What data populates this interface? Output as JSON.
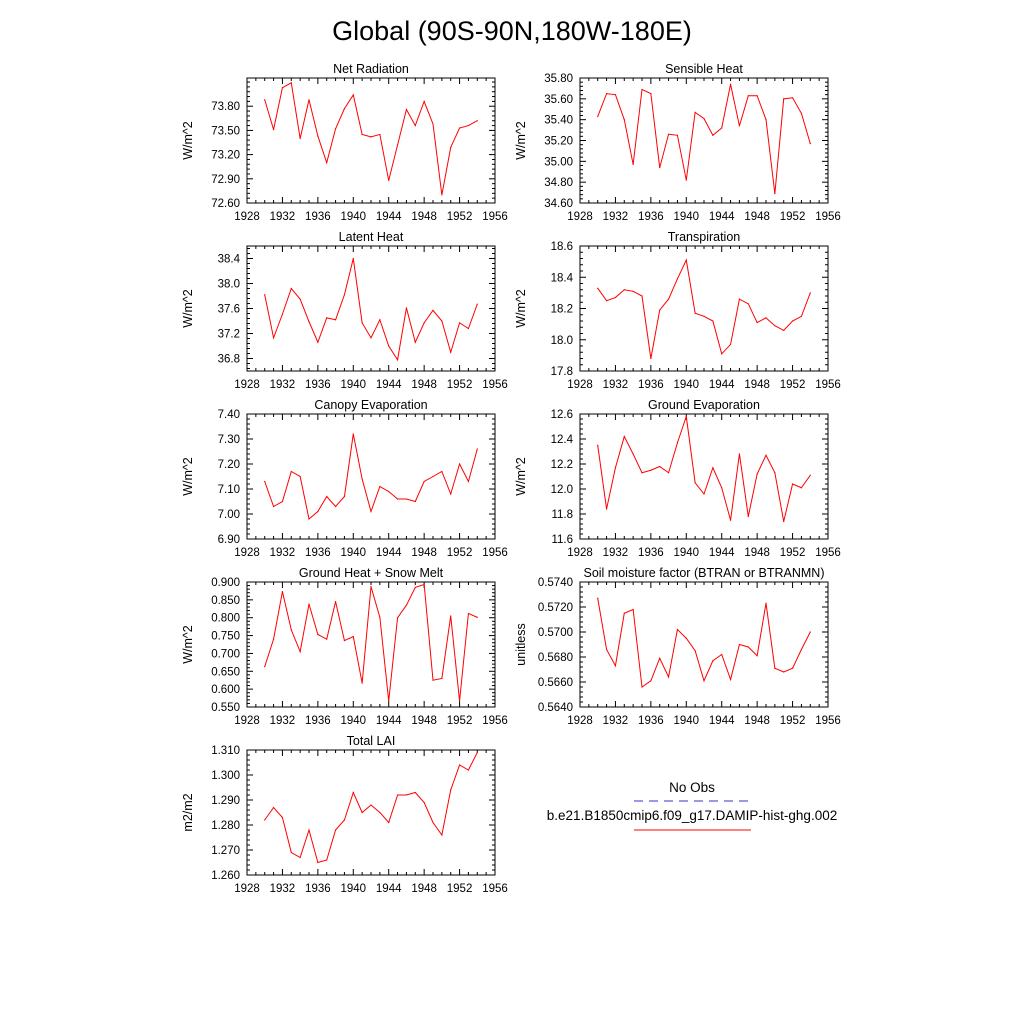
{
  "title": "Global (90S-90N,180W-180E)",
  "legend": {
    "obs_label": "No Obs",
    "model_label": "b.e21.B1850cmip6.f09_g17.DAMIP-hist-ghg.002",
    "obs_color": "#3333cc",
    "model_color": "#ff0000"
  },
  "chart_data": [
    {
      "type": "line",
      "title": "Net Radiation",
      "ylabel": "W/m^2",
      "xlim": [
        1928,
        1956
      ],
      "ylim": [
        72.6,
        74.15
      ],
      "xticks": [
        1928,
        1932,
        1936,
        1940,
        1944,
        1948,
        1952,
        1956
      ],
      "yticks": [
        "72.60",
        "72.90",
        "73.20",
        "73.50",
        "73.80"
      ],
      "x": [
        1930,
        1931,
        1932,
        1933,
        1934,
        1935,
        1936,
        1937,
        1938,
        1939,
        1940,
        1941,
        1942,
        1943,
        1944,
        1945,
        1946,
        1947,
        1948,
        1949,
        1950,
        1951,
        1952,
        1953,
        1954
      ],
      "y": [
        73.88,
        73.51,
        74.03,
        74.09,
        73.4,
        73.88,
        73.43,
        73.1,
        73.52,
        73.77,
        73.94,
        73.45,
        73.42,
        73.45,
        72.88,
        73.32,
        73.76,
        73.56,
        73.86,
        73.58,
        72.7,
        73.29,
        73.53,
        73.56,
        73.62
      ]
    },
    {
      "type": "line",
      "title": "Sensible Heat",
      "ylabel": "W/m^2",
      "xlim": [
        1928,
        1956
      ],
      "ylim": [
        34.6,
        35.8
      ],
      "xticks": [
        1928,
        1932,
        1936,
        1940,
        1944,
        1948,
        1952,
        1956
      ],
      "yticks": [
        "34.60",
        "34.80",
        "35.00",
        "35.20",
        "35.40",
        "35.60",
        "35.80"
      ],
      "x": [
        1930,
        1931,
        1932,
        1933,
        1934,
        1935,
        1936,
        1937,
        1938,
        1939,
        1940,
        1941,
        1942,
        1943,
        1944,
        1945,
        1946,
        1947,
        1948,
        1949,
        1950,
        1951,
        1952,
        1953,
        1954
      ],
      "y": [
        35.43,
        35.65,
        35.64,
        35.4,
        34.97,
        35.69,
        35.65,
        34.94,
        35.26,
        35.25,
        34.82,
        35.47,
        35.41,
        35.25,
        35.32,
        35.74,
        35.34,
        35.63,
        35.63,
        35.4,
        34.69,
        35.6,
        35.61,
        35.46,
        35.17
      ]
    },
    {
      "type": "line",
      "title": "Latent Heat",
      "ylabel": "W/m^2",
      "xlim": [
        1928,
        1956
      ],
      "ylim": [
        36.6,
        38.6
      ],
      "xticks": [
        1928,
        1932,
        1936,
        1940,
        1944,
        1948,
        1952,
        1956
      ],
      "yticks": [
        "36.8",
        "37.2",
        "37.6",
        "38.0",
        "38.4"
      ],
      "x": [
        1930,
        1931,
        1932,
        1933,
        1934,
        1935,
        1936,
        1937,
        1938,
        1939,
        1940,
        1941,
        1942,
        1943,
        1944,
        1945,
        1946,
        1947,
        1948,
        1949,
        1950,
        1951,
        1952,
        1953,
        1954
      ],
      "y": [
        37.82,
        37.13,
        37.51,
        37.92,
        37.75,
        37.39,
        37.06,
        37.45,
        37.42,
        37.82,
        38.4,
        37.37,
        37.13,
        37.42,
        37.0,
        36.78,
        37.61,
        37.06,
        37.37,
        37.57,
        37.4,
        36.9,
        37.37,
        37.28,
        37.67
      ]
    },
    {
      "type": "line",
      "title": "Transpiration",
      "ylabel": "W/m^2",
      "xlim": [
        1928,
        1956
      ],
      "ylim": [
        17.8,
        18.6
      ],
      "xticks": [
        1928,
        1932,
        1936,
        1940,
        1944,
        1948,
        1952,
        1956
      ],
      "yticks": [
        "17.8",
        "18.0",
        "18.2",
        "18.4",
        "18.6"
      ],
      "x": [
        1930,
        1931,
        1932,
        1933,
        1934,
        1935,
        1936,
        1937,
        1938,
        1939,
        1940,
        1941,
        1942,
        1943,
        1944,
        1945,
        1946,
        1947,
        1948,
        1949,
        1950,
        1951,
        1952,
        1953,
        1954
      ],
      "y": [
        18.33,
        18.25,
        18.27,
        18.32,
        18.31,
        18.28,
        17.88,
        18.19,
        18.26,
        18.39,
        18.51,
        18.17,
        18.15,
        18.12,
        17.91,
        17.97,
        18.26,
        18.23,
        18.11,
        18.14,
        18.09,
        18.06,
        18.12,
        18.15,
        18.3
      ]
    },
    {
      "type": "line",
      "title": "Canopy Evaporation",
      "ylabel": "W/m^2",
      "xlim": [
        1928,
        1956
      ],
      "ylim": [
        6.9,
        7.4
      ],
      "xticks": [
        1928,
        1932,
        1936,
        1940,
        1944,
        1948,
        1952,
        1956
      ],
      "yticks": [
        "6.90",
        "7.00",
        "7.10",
        "7.20",
        "7.30",
        "7.40"
      ],
      "x": [
        1930,
        1931,
        1932,
        1933,
        1934,
        1935,
        1936,
        1937,
        1938,
        1939,
        1940,
        1941,
        1942,
        1943,
        1944,
        1945,
        1946,
        1947,
        1948,
        1949,
        1950,
        1951,
        1952,
        1953,
        1954
      ],
      "y": [
        7.13,
        7.03,
        7.05,
        7.17,
        7.15,
        6.98,
        7.01,
        7.07,
        7.03,
        7.07,
        7.32,
        7.14,
        7.01,
        7.11,
        7.09,
        7.06,
        7.06,
        7.05,
        7.13,
        7.15,
        7.17,
        7.08,
        7.2,
        7.13,
        7.26
      ]
    },
    {
      "type": "line",
      "title": "Ground Evaporation",
      "ylabel": "W/m^2",
      "xlim": [
        1928,
        1956
      ],
      "ylim": [
        11.6,
        12.6
      ],
      "xticks": [
        1928,
        1932,
        1936,
        1940,
        1944,
        1948,
        1952,
        1956
      ],
      "yticks": [
        "11.6",
        "11.8",
        "12.0",
        "12.2",
        "12.4",
        "12.6"
      ],
      "x": [
        1930,
        1931,
        1932,
        1933,
        1934,
        1935,
        1936,
        1937,
        1938,
        1939,
        1940,
        1941,
        1942,
        1943,
        1944,
        1945,
        1946,
        1947,
        1948,
        1949,
        1950,
        1951,
        1952,
        1953,
        1954
      ],
      "y": [
        12.35,
        11.84,
        12.17,
        12.42,
        12.28,
        12.13,
        12.15,
        12.18,
        12.13,
        12.37,
        12.58,
        12.05,
        11.96,
        12.17,
        12.01,
        11.75,
        12.28,
        11.78,
        12.12,
        12.27,
        12.13,
        11.74,
        12.04,
        12.01,
        12.11
      ]
    },
    {
      "type": "line",
      "title": "Ground Heat + Snow Melt",
      "ylabel": "W/m^2",
      "xlim": [
        1928,
        1956
      ],
      "ylim": [
        0.55,
        0.9
      ],
      "xticks": [
        1928,
        1932,
        1936,
        1940,
        1944,
        1948,
        1952,
        1956
      ],
      "yticks": [
        "0.550",
        "0.600",
        "0.650",
        "0.700",
        "0.750",
        "0.800",
        "0.850",
        "0.900"
      ],
      "x": [
        1930,
        1931,
        1932,
        1933,
        1934,
        1935,
        1936,
        1937,
        1938,
        1939,
        1940,
        1941,
        1942,
        1943,
        1944,
        1945,
        1946,
        1947,
        1948,
        1949,
        1950,
        1951,
        1952,
        1953,
        1954
      ],
      "y": [
        0.663,
        0.74,
        0.873,
        0.766,
        0.705,
        0.838,
        0.753,
        0.74,
        0.845,
        0.736,
        0.747,
        0.617,
        0.887,
        0.801,
        0.567,
        0.8,
        0.835,
        0.885,
        0.893,
        0.625,
        0.63,
        0.805,
        0.567,
        0.812,
        0.801
      ]
    },
    {
      "type": "line",
      "title": "Soil moisture factor (BTRAN or BTRANMN)",
      "ylabel": "unitless",
      "xlim": [
        1928,
        1956
      ],
      "ylim": [
        0.564,
        0.574
      ],
      "xticks": [
        1928,
        1932,
        1936,
        1940,
        1944,
        1948,
        1952,
        1956
      ],
      "yticks": [
        "0.5640",
        "0.5660",
        "0.5680",
        "0.5700",
        "0.5720",
        "0.5740"
      ],
      "x": [
        1930,
        1931,
        1932,
        1933,
        1934,
        1935,
        1936,
        1937,
        1938,
        1939,
        1940,
        1941,
        1942,
        1943,
        1944,
        1945,
        1946,
        1947,
        1948,
        1949,
        1950,
        1951,
        1952,
        1953,
        1954
      ],
      "y": [
        0.5727,
        0.5686,
        0.5673,
        0.5715,
        0.5718,
        0.5656,
        0.5661,
        0.5679,
        0.5664,
        0.5702,
        0.5695,
        0.5685,
        0.5661,
        0.5677,
        0.5682,
        0.5662,
        0.569,
        0.5688,
        0.5681,
        0.5723,
        0.5671,
        0.5668,
        0.5671,
        0.5686,
        0.57
      ]
    },
    {
      "type": "line",
      "title": "Total LAI",
      "ylabel": "m2/m2",
      "xlim": [
        1928,
        1956
      ],
      "ylim": [
        1.26,
        1.31
      ],
      "xticks": [
        1928,
        1932,
        1936,
        1940,
        1944,
        1948,
        1952,
        1956
      ],
      "yticks": [
        "1.260",
        "1.270",
        "1.280",
        "1.290",
        "1.300",
        "1.310"
      ],
      "x": [
        1930,
        1931,
        1932,
        1933,
        1934,
        1935,
        1936,
        1937,
        1938,
        1939,
        1940,
        1941,
        1942,
        1943,
        1944,
        1945,
        1946,
        1947,
        1948,
        1949,
        1950,
        1951,
        1952,
        1953,
        1954
      ],
      "y": [
        1.282,
        1.287,
        1.283,
        1.269,
        1.267,
        1.278,
        1.265,
        1.266,
        1.278,
        1.282,
        1.293,
        1.285,
        1.288,
        1.285,
        1.281,
        1.292,
        1.292,
        1.293,
        1.289,
        1.281,
        1.276,
        1.294,
        1.304,
        1.302,
        1.309
      ]
    }
  ]
}
